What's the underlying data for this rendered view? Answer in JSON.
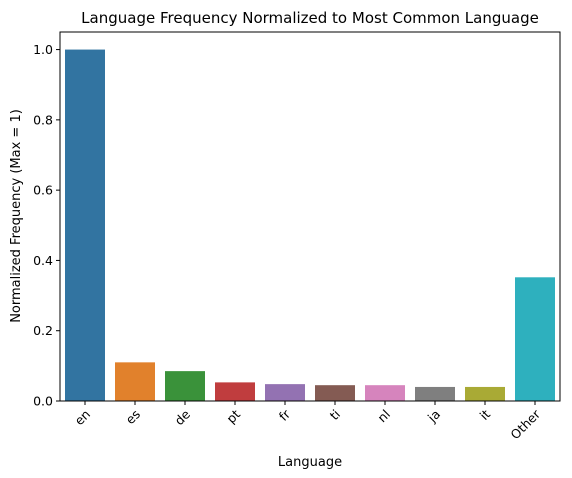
{
  "chart_data": {
    "type": "bar",
    "title": "Language Frequency Normalized to Most Common Language",
    "xlabel": "Language",
    "ylabel": "Normalized Frequency (Max = 1)",
    "ylim": [
      0,
      1.05
    ],
    "yticks": [
      "0.0",
      "0.2",
      "0.4",
      "0.6",
      "0.8",
      "1.0"
    ],
    "grid": false,
    "categories": [
      "en",
      "es",
      "de",
      "pt",
      "fr",
      "ti",
      "nl",
      "ja",
      "it",
      "Other"
    ],
    "values": [
      1.0,
      0.11,
      0.085,
      0.053,
      0.048,
      0.045,
      0.045,
      0.04,
      0.04,
      0.352
    ],
    "colors": [
      "#3274a1",
      "#e1812c",
      "#3a923a",
      "#c03d3e",
      "#9372b2",
      "#845b53",
      "#d684bd",
      "#7f7f7f",
      "#a9aa35",
      "#2eb0be"
    ]
  }
}
